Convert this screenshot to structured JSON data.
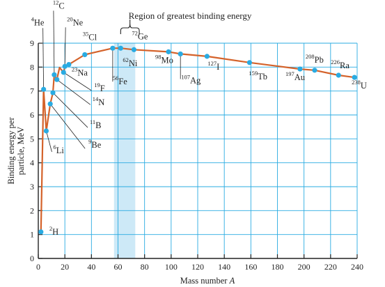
{
  "chart_data": {
    "type": "line",
    "title": "",
    "annotation": "Region of greatest binding energy",
    "xlabel": "Mass number",
    "xlabel_var": "A",
    "ylabel_lines": [
      "Binding energy per",
      "particle, MeV"
    ],
    "xlim": [
      0,
      240
    ],
    "ylim": [
      0,
      9
    ],
    "xticks": [
      0,
      20,
      40,
      60,
      80,
      100,
      120,
      140,
      160,
      180,
      200,
      220,
      240
    ],
    "yticks": [
      0,
      1,
      2,
      3,
      4,
      5,
      6,
      7,
      8,
      9
    ],
    "x_grid": [
      0,
      20,
      40,
      60,
      80,
      100,
      120,
      140,
      160,
      180,
      200,
      220,
      240
    ],
    "y_grid": [
      1,
      2,
      3,
      4,
      5,
      6,
      7,
      8,
      9
    ],
    "highlight_band": [
      57,
      73
    ],
    "annotation_bracket": [
      62,
      76
    ],
    "x": [
      2,
      4,
      6,
      9,
      11,
      12,
      14,
      16,
      19,
      20,
      23,
      35,
      56,
      62,
      72,
      98,
      107,
      127,
      159,
      197,
      208,
      226,
      238
    ],
    "y": [
      1.11,
      7.07,
      5.33,
      6.46,
      6.93,
      7.68,
      7.48,
      7.98,
      7.78,
      8.03,
      8.11,
      8.52,
      8.79,
      8.79,
      8.73,
      8.64,
      8.55,
      8.45,
      8.19,
      7.92,
      7.87,
      7.66,
      7.57
    ],
    "elements": [
      {
        "mass": "2",
        "symbol": "H",
        "x": 2,
        "y": 1.11
      },
      {
        "mass": "4",
        "symbol": "He",
        "x": 4,
        "y": 7.07
      },
      {
        "mass": "6",
        "symbol": "Li",
        "x": 6,
        "y": 5.33
      },
      {
        "mass": "9",
        "symbol": "Be",
        "x": 9,
        "y": 6.46
      },
      {
        "mass": "11",
        "symbol": "B",
        "x": 11,
        "y": 6.93
      },
      {
        "mass": "12",
        "symbol": "C",
        "x": 12,
        "y": 7.68
      },
      {
        "mass": "14",
        "symbol": "N",
        "x": 14,
        "y": 7.48
      },
      {
        "mass": "19",
        "symbol": "F",
        "x": 19,
        "y": 7.78
      },
      {
        "mass": "20",
        "symbol": "Ne",
        "x": 20,
        "y": 8.03
      },
      {
        "mass": "23",
        "symbol": "Na",
        "x": 23,
        "y": 8.11
      },
      {
        "mass": "35",
        "symbol": "Cl",
        "x": 35,
        "y": 8.52
      },
      {
        "mass": "56",
        "symbol": "Fe",
        "x": 56,
        "y": 8.79
      },
      {
        "mass": "62",
        "symbol": "Ni",
        "x": 62,
        "y": 8.79
      },
      {
        "mass": "72",
        "symbol": "Ge",
        "x": 72,
        "y": 8.73
      },
      {
        "mass": "98",
        "symbol": "Mo",
        "x": 98,
        "y": 8.64
      },
      {
        "mass": "107",
        "symbol": "Ag",
        "x": 107,
        "y": 8.55
      },
      {
        "mass": "127",
        "symbol": "I",
        "x": 127,
        "y": 8.45
      },
      {
        "mass": "159",
        "symbol": "Tb",
        "x": 159,
        "y": 8.19
      },
      {
        "mass": "197",
        "symbol": "Au",
        "x": 197,
        "y": 7.92
      },
      {
        "mass": "208",
        "symbol": "Pb",
        "x": 208,
        "y": 7.87
      },
      {
        "mass": "226",
        "symbol": "Ra",
        "x": 226,
        "y": 7.66
      },
      {
        "mass": "238",
        "symbol": "U",
        "x": 238,
        "y": 7.57
      }
    ],
    "colors": {
      "curve": "#d4622a",
      "point": "#29abe2",
      "grid": "#29abe2",
      "band": "#cde9f7",
      "axis": "#222222",
      "text": "#222222"
    },
    "grid": true,
    "legend": "none"
  }
}
